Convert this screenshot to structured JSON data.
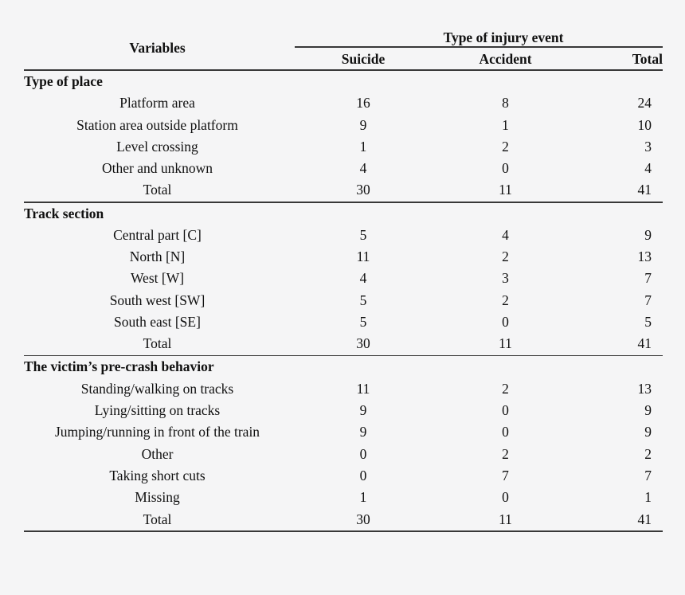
{
  "table": {
    "variables_header": "Variables",
    "spanner": "Type of injury event",
    "columns": [
      "Suicide",
      "Accident",
      "Total"
    ],
    "sections": [
      {
        "title": "Type of place",
        "rows": [
          {
            "label": "Platform area",
            "values": [
              "16",
              "8",
              "24"
            ]
          },
          {
            "label": "Station area outside platform",
            "values": [
              "9",
              "1",
              "10"
            ]
          },
          {
            "label": "Level crossing",
            "values": [
              "1",
              "2",
              "3"
            ]
          },
          {
            "label": "Other and unknown",
            "values": [
              "4",
              "0",
              "4"
            ]
          },
          {
            "label": "Total",
            "values": [
              "30",
              "11",
              "41"
            ]
          }
        ]
      },
      {
        "title": "Track section",
        "rows": [
          {
            "label": "Central part [C]",
            "values": [
              "5",
              "4",
              "9"
            ]
          },
          {
            "label": "North [N]",
            "values": [
              "11",
              "2",
              "13"
            ]
          },
          {
            "label": "West [W]",
            "values": [
              "4",
              "3",
              "7"
            ]
          },
          {
            "label": "South west [SW]",
            "values": [
              "5",
              "2",
              "7"
            ]
          },
          {
            "label": "South east [SE]",
            "values": [
              "5",
              "0",
              "5"
            ]
          },
          {
            "label": "Total",
            "values": [
              "30",
              "11",
              "41"
            ]
          }
        ]
      },
      {
        "title": "The victim’s pre-crash behavior",
        "rows": [
          {
            "label": "Standing/walking on tracks",
            "values": [
              "11",
              "2",
              "13"
            ]
          },
          {
            "label": "Lying/sitting on tracks",
            "values": [
              "9",
              "0",
              "9"
            ]
          },
          {
            "label": "Jumping/running in front of the train",
            "values": [
              "9",
              "0",
              "9"
            ]
          },
          {
            "label": "Other",
            "values": [
              "0",
              "2",
              "2"
            ]
          },
          {
            "label": "Taking short cuts",
            "values": [
              "0",
              "7",
              "7"
            ]
          },
          {
            "label": "Missing",
            "values": [
              "1",
              "0",
              "1"
            ]
          },
          {
            "label": "Total",
            "values": [
              "30",
              "11",
              "41"
            ]
          }
        ]
      }
    ]
  },
  "colors": {
    "background": "#f5f5f6",
    "text": "#101010",
    "rule": "#383838"
  }
}
